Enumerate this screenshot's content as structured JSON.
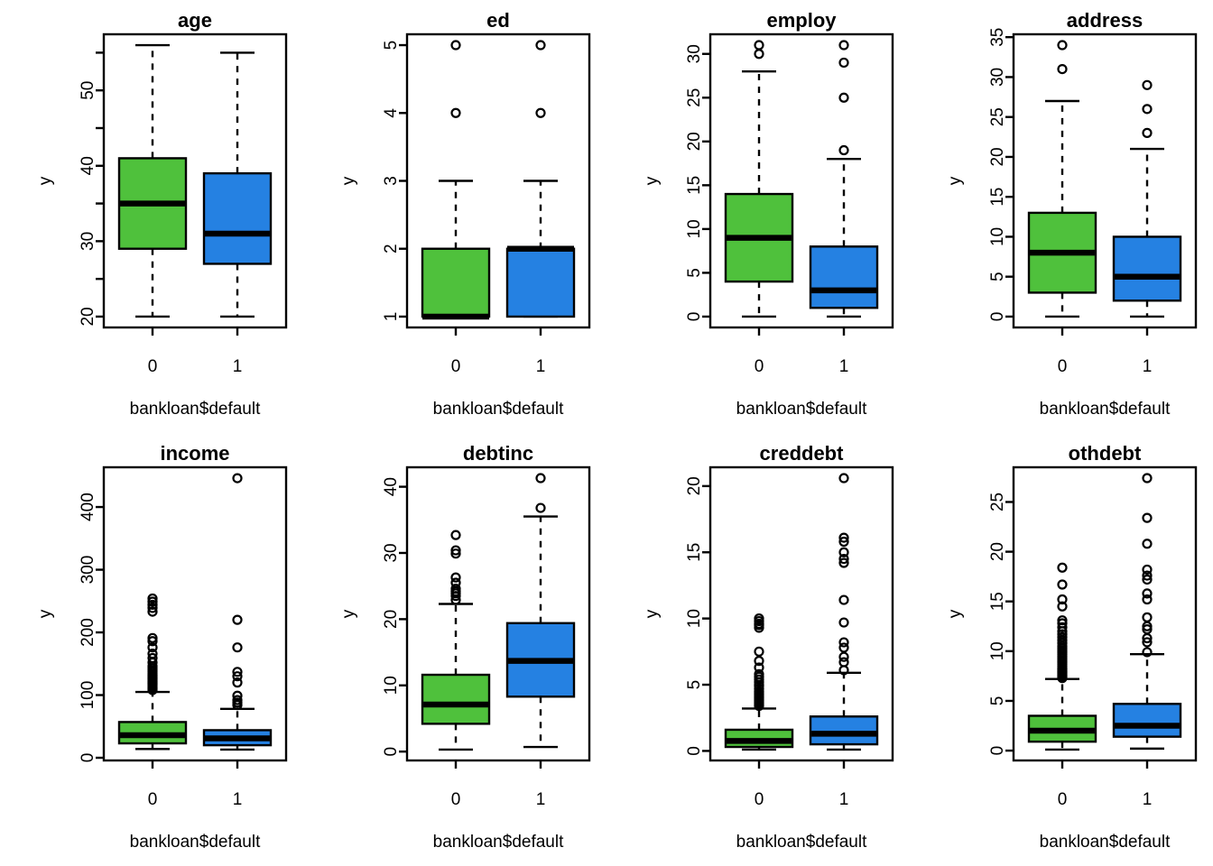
{
  "figure": {
    "xlabel": "bankloan$default",
    "ylabel": "y",
    "categories": [
      "0",
      "1"
    ]
  },
  "colors": {
    "group0": "#4FC13C",
    "group1": "#2581E2",
    "stroke": "#000000",
    "background": "#FFFFFF"
  },
  "chart_data": [
    {
      "type": "boxplot",
      "title": "age",
      "xlabel": "bankloan$default",
      "ylabel": "y",
      "categories": [
        "0",
        "1"
      ],
      "ylim": [
        18.56,
        57.44
      ],
      "yticks": [
        20,
        25,
        30,
        35,
        40,
        45,
        50,
        55
      ],
      "ytick_labels": [
        "20",
        "",
        "30",
        "",
        "40",
        "",
        "50",
        ""
      ],
      "series": [
        {
          "name": "0",
          "color_key": "group0",
          "whislo": 20,
          "q1": 29,
          "med": 35,
          "q3": 41,
          "whishi": 56,
          "outliers": []
        },
        {
          "name": "1",
          "color_key": "group1",
          "whislo": 20,
          "q1": 27,
          "med": 31,
          "q3": 39,
          "whishi": 55,
          "outliers": []
        }
      ]
    },
    {
      "type": "boxplot",
      "title": "ed",
      "xlabel": "bankloan$default",
      "ylabel": "y",
      "categories": [
        "0",
        "1"
      ],
      "ylim": [
        0.84,
        5.16
      ],
      "yticks": [
        1,
        2,
        3,
        4,
        5
      ],
      "ytick_labels": [
        "1",
        "2",
        "3",
        "4",
        "5"
      ],
      "series": [
        {
          "name": "0",
          "color_key": "group0",
          "whislo": 1,
          "q1": 1,
          "med": 1,
          "q3": 2,
          "whishi": 3,
          "outliers": [
            4,
            5
          ]
        },
        {
          "name": "1",
          "color_key": "group1",
          "whislo": 1,
          "q1": 1,
          "med": 2,
          "q3": 2,
          "whishi": 3,
          "outliers": [
            4,
            5
          ]
        }
      ]
    },
    {
      "type": "boxplot",
      "title": "employ",
      "xlabel": "bankloan$default",
      "ylabel": "y",
      "categories": [
        "0",
        "1"
      ],
      "ylim": [
        -1.24,
        32.24
      ],
      "yticks": [
        0,
        5,
        10,
        15,
        20,
        25,
        30
      ],
      "ytick_labels": [
        "0",
        "5",
        "10",
        "15",
        "20",
        "25",
        "30"
      ],
      "series": [
        {
          "name": "0",
          "color_key": "group0",
          "whislo": 0,
          "q1": 4,
          "med": 9,
          "q3": 14,
          "whishi": 28,
          "outliers": [
            30,
            31
          ]
        },
        {
          "name": "1",
          "color_key": "group1",
          "whislo": 0,
          "q1": 1,
          "med": 3,
          "q3": 8,
          "whishi": 18,
          "outliers": [
            19,
            25,
            29,
            31
          ]
        }
      ]
    },
    {
      "type": "boxplot",
      "title": "address",
      "xlabel": "bankloan$default",
      "ylabel": "y",
      "categories": [
        "0",
        "1"
      ],
      "ylim": [
        -1.36,
        35.36
      ],
      "yticks": [
        0,
        5,
        10,
        15,
        20,
        25,
        30,
        35
      ],
      "ytick_labels": [
        "0",
        "5",
        "10",
        "15",
        "20",
        "25",
        "30",
        "35"
      ],
      "series": [
        {
          "name": "0",
          "color_key": "group0",
          "whislo": 0,
          "q1": 3,
          "med": 8,
          "q3": 13,
          "whishi": 27,
          "outliers": [
            31,
            34
          ]
        },
        {
          "name": "1",
          "color_key": "group1",
          "whislo": 0,
          "q1": 2,
          "med": 5,
          "q3": 10,
          "whishi": 21,
          "outliers": [
            23,
            26,
            29
          ]
        }
      ]
    },
    {
      "type": "boxplot",
      "title": "income",
      "xlabel": "bankloan$default",
      "ylabel": "y",
      "categories": [
        "0",
        "1"
      ],
      "ylim": [
        -4.3,
        463.4
      ],
      "yticks": [
        0,
        100,
        200,
        300,
        400
      ],
      "ytick_labels": [
        "0",
        "100",
        "200",
        "300",
        "400"
      ],
      "series": [
        {
          "name": "0",
          "color_key": "group0",
          "whislo": 14,
          "q1": 23,
          "med": 36,
          "q3": 57,
          "whishi": 105,
          "outliers": [
            108,
            110,
            112,
            114,
            116,
            118,
            120,
            122,
            124,
            126,
            128,
            130,
            132,
            134,
            137,
            140,
            143,
            146,
            152,
            159,
            166,
            176,
            186,
            191,
            233,
            239,
            244,
            249,
            254
          ]
        },
        {
          "name": "1",
          "color_key": "group1",
          "whislo": 13,
          "q1": 20,
          "med": 31,
          "q3": 44,
          "whishi": 78,
          "outliers": [
            84,
            88,
            92,
            99,
            120,
            130,
            137,
            176,
            220,
            446
          ]
        }
      ]
    },
    {
      "type": "boxplot",
      "title": "debtinc",
      "xlabel": "bankloan$default",
      "ylabel": "y",
      "categories": [
        "0",
        "1"
      ],
      "ylim": [
        -1.34,
        42.94
      ],
      "yticks": [
        0,
        10,
        20,
        30,
        40
      ],
      "ytick_labels": [
        "0",
        "10",
        "20",
        "30",
        "40"
      ],
      "series": [
        {
          "name": "0",
          "color_key": "group0",
          "whislo": 0.3,
          "q1": 4.2,
          "med": 7.1,
          "q3": 11.6,
          "whishi": 22.3,
          "outliers": [
            22.9,
            23.5,
            23.9,
            24.2,
            24.6,
            25.5,
            26.3,
            29.9,
            30.4,
            32.7
          ]
        },
        {
          "name": "1",
          "color_key": "group1",
          "whislo": 0.7,
          "q1": 8.3,
          "med": 13.7,
          "q3": 19.4,
          "whishi": 35.5,
          "outliers": [
            36.8,
            41.3
          ]
        }
      ]
    },
    {
      "type": "boxplot",
      "title": "creddebt",
      "xlabel": "bankloan$default",
      "ylabel": "y",
      "categories": [
        "0",
        "1"
      ],
      "ylim": [
        -0.72,
        21.42
      ],
      "yticks": [
        0,
        5,
        10,
        15,
        20
      ],
      "ytick_labels": [
        "0",
        "5",
        "10",
        "15",
        "20"
      ],
      "series": [
        {
          "name": "0",
          "color_key": "group0",
          "whislo": 0.1,
          "q1": 0.3,
          "med": 0.75,
          "q3": 1.6,
          "whishi": 3.2,
          "outliers": [
            3.4,
            3.5,
            3.6,
            3.7,
            3.8,
            3.9,
            4.0,
            4.1,
            4.2,
            4.3,
            4.4,
            4.5,
            4.7,
            4.9,
            5.0,
            5.2,
            5.4,
            5.6,
            5.8,
            6.3,
            6.8,
            7.5,
            9.3,
            9.5,
            9.6,
            9.8,
            10.0
          ]
        },
        {
          "name": "1",
          "color_key": "group1",
          "whislo": 0.1,
          "q1": 0.5,
          "med": 1.3,
          "q3": 2.6,
          "whishi": 5.9,
          "outliers": [
            6.1,
            6.7,
            7.1,
            7.8,
            8.2,
            9.7,
            11.4,
            14.2,
            14.5,
            15.0,
            15.8,
            16.1,
            20.6
          ]
        }
      ]
    },
    {
      "type": "boxplot",
      "title": "othdebt",
      "xlabel": "bankloan$default",
      "ylabel": "y",
      "categories": [
        "0",
        "1"
      ],
      "ylim": [
        -0.99,
        28.49
      ],
      "yticks": [
        0,
        5,
        10,
        15,
        20,
        25
      ],
      "ytick_labels": [
        "0",
        "5",
        "10",
        "15",
        "20",
        "25"
      ],
      "series": [
        {
          "name": "0",
          "color_key": "group0",
          "whislo": 0.1,
          "q1": 0.9,
          "med": 2.0,
          "q3": 3.5,
          "whishi": 7.2,
          "outliers": [
            7.3,
            7.4,
            7.5,
            7.6,
            7.7,
            7.8,
            7.9,
            8.0,
            8.1,
            8.2,
            8.3,
            8.5,
            8.7,
            8.9,
            9.1,
            9.3,
            9.5,
            9.7,
            9.9,
            10.1,
            10.3,
            10.5,
            10.8,
            11.1,
            11.4,
            11.7,
            12.0,
            12.4,
            12.8,
            13.1,
            14.5,
            15.2,
            16.7,
            18.4
          ]
        },
        {
          "name": "1",
          "color_key": "group1",
          "whislo": 0.2,
          "q1": 1.4,
          "med": 2.5,
          "q3": 4.7,
          "whishi": 9.7,
          "outliers": [
            9.9,
            10.9,
            11.3,
            12.2,
            12.5,
            13.4,
            15.2,
            15.8,
            17.2,
            17.6,
            18.2,
            20.8,
            23.4,
            27.4
          ]
        }
      ]
    }
  ]
}
